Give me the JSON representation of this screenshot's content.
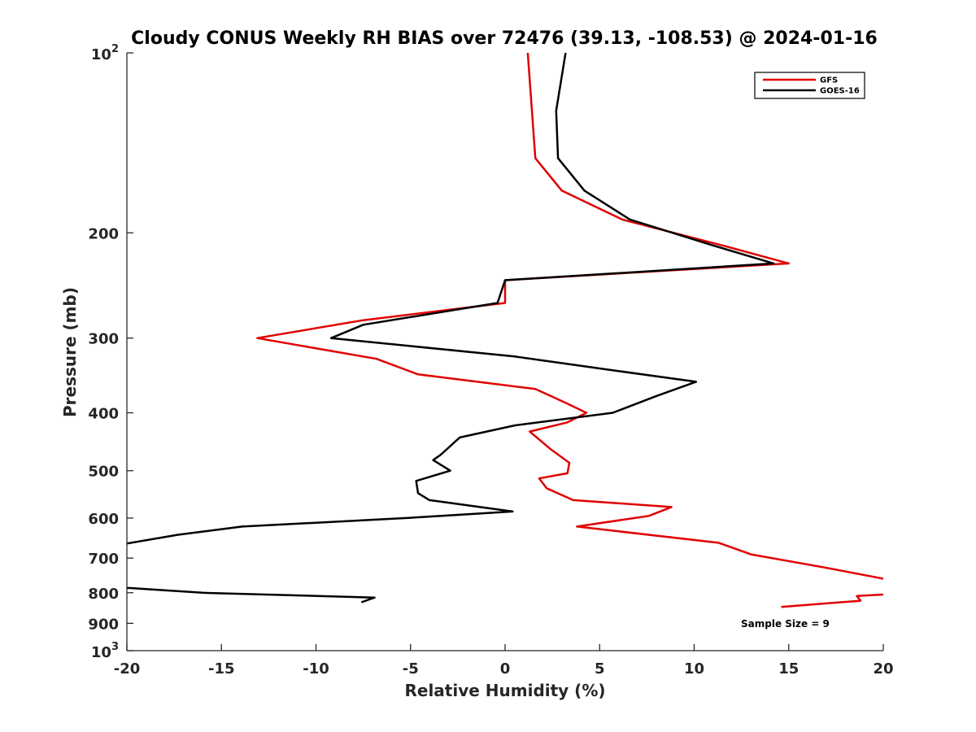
{
  "chart_data": {
    "type": "line",
    "title": "Cloudy CONUS Weekly RH BIAS over 72476 (39.13, -108.53) @ 2024-01-16",
    "xlabel": "Relative Humidity (%)",
    "ylabel": "Pressure (mb)",
    "xlim": [
      -20,
      20
    ],
    "ylim": [
      100,
      1000
    ],
    "yscale": "log",
    "y_reversed": true,
    "x_ticks": [
      "-20",
      "-15",
      "-10",
      "-5",
      "0",
      "5",
      "10",
      "15",
      "20"
    ],
    "y_ticks": [
      {
        "value": 100,
        "base": "10",
        "exp": "2"
      },
      {
        "value": 200,
        "label": "200"
      },
      {
        "value": 300,
        "label": "300"
      },
      {
        "value": 400,
        "label": "400"
      },
      {
        "value": 500,
        "label": "500"
      },
      {
        "value": 600,
        "label": "600"
      },
      {
        "value": 700,
        "label": "700"
      },
      {
        "value": 800,
        "label": "800"
      },
      {
        "value": 900,
        "label": "900"
      },
      {
        "value": 1000,
        "base": "10",
        "exp": "3"
      }
    ],
    "legend_position": "top-right",
    "series": [
      {
        "name": "GFS",
        "color": "#e00000",
        "points": [
          [
            1.2,
            100
          ],
          [
            1.6,
            150
          ],
          [
            3.0,
            170
          ],
          [
            6.2,
            190
          ],
          [
            11.5,
            210
          ],
          [
            15.0,
            225
          ],
          [
            0.0,
            240
          ],
          [
            0.0,
            262
          ],
          [
            -7.5,
            280
          ],
          [
            -13.1,
            300
          ],
          [
            -6.8,
            325
          ],
          [
            -4.6,
            345
          ],
          [
            1.6,
            365
          ],
          [
            3.2,
            385
          ],
          [
            4.3,
            400
          ],
          [
            3.3,
            415
          ],
          [
            1.3,
            430
          ],
          [
            2.4,
            460
          ],
          [
            3.4,
            485
          ],
          [
            3.3,
            505
          ],
          [
            1.8,
            515
          ],
          [
            2.2,
            535
          ],
          [
            3.6,
            560
          ],
          [
            8.8,
            575
          ],
          [
            7.6,
            595
          ],
          [
            3.8,
            620
          ],
          [
            11.3,
            660
          ],
          [
            13.0,
            690
          ],
          [
            16.8,
            725
          ],
          [
            20.2,
            760
          ],
          [
            20.2,
            805
          ],
          [
            18.6,
            810
          ],
          [
            18.8,
            825
          ],
          [
            14.6,
            845
          ]
        ]
      },
      {
        "name": "GOES-16",
        "color": "#000000",
        "points": [
          [
            3.2,
            100
          ],
          [
            2.7,
            125
          ],
          [
            2.8,
            150
          ],
          [
            4.2,
            170
          ],
          [
            6.6,
            190
          ],
          [
            11.0,
            210
          ],
          [
            14.2,
            225
          ],
          [
            0.0,
            240
          ],
          [
            -0.4,
            262
          ],
          [
            -7.5,
            285
          ],
          [
            -9.2,
            300
          ],
          [
            0.5,
            322
          ],
          [
            5.8,
            340
          ],
          [
            10.1,
            355
          ],
          [
            8.0,
            375
          ],
          [
            5.7,
            400
          ],
          [
            0.5,
            420
          ],
          [
            -2.4,
            440
          ],
          [
            -3.4,
            470
          ],
          [
            -3.8,
            480
          ],
          [
            -2.9,
            500
          ],
          [
            -4.7,
            520
          ],
          [
            -4.6,
            545
          ],
          [
            -4.0,
            560
          ],
          [
            0.4,
            585
          ],
          [
            -5.2,
            600
          ],
          [
            -13.9,
            620
          ],
          [
            -17.3,
            640
          ],
          [
            -21.0,
            670
          ],
          [
            -21.0,
            780
          ],
          [
            -20.0,
            785
          ],
          [
            -16.0,
            800
          ],
          [
            -6.9,
            815
          ],
          [
            -7.6,
            830
          ]
        ]
      }
    ],
    "annotation": "Sample Size = 9"
  }
}
